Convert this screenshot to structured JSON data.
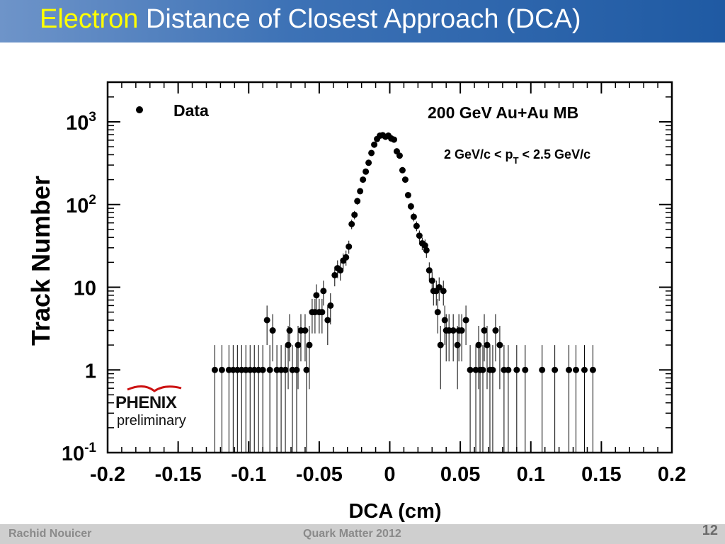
{
  "header": {
    "title_highlight": "Electron",
    "title_rest": "Distance of Closest Approach (DCA)",
    "highlight_color": "#ffff00"
  },
  "footer": {
    "author": "Rachid Nouicer",
    "conference": "Quark Matter 2012",
    "page_number": "12"
  },
  "logo": {
    "name": "PHENIX",
    "status": "preliminary"
  },
  "chart_data": {
    "type": "scatter",
    "xlabel": "DCA (cm)",
    "ylabel": "Track Number",
    "xlim": [
      -0.2,
      0.2
    ],
    "ylim": [
      0.1,
      2000
    ],
    "yscale": "log",
    "x_ticks": [
      "-0.2",
      "-0.15",
      "-0.1",
      "-0.05",
      "0",
      "0.05",
      "0.1",
      "0.15",
      "0.2"
    ],
    "y_ticks": [
      {
        "base": "10",
        "exp": "-1",
        "value": 0.1
      },
      {
        "base": "1",
        "exp": "",
        "value": 1
      },
      {
        "base": "10",
        "exp": "",
        "value": 10
      },
      {
        "base": "10",
        "exp": "2",
        "value": 100
      },
      {
        "base": "10",
        "exp": "3",
        "value": 1000
      }
    ],
    "legend": {
      "label": "Data",
      "position": "top-left"
    },
    "annotations": [
      "200 GeV  Au+Au MB",
      "2 GeV/c < p",
      "T",
      " < 2.5 GeV/c"
    ],
    "series": [
      {
        "name": "Data",
        "points": [
          [
            -0.124,
            1
          ],
          [
            -0.119,
            1
          ],
          [
            -0.114,
            1
          ],
          [
            -0.111,
            1
          ],
          [
            -0.108,
            1
          ],
          [
            -0.105,
            1
          ],
          [
            -0.102,
            1
          ],
          [
            -0.099,
            1
          ],
          [
            -0.096,
            1
          ],
          [
            -0.093,
            1
          ],
          [
            -0.09,
            1
          ],
          [
            -0.087,
            4
          ],
          [
            -0.085,
            1
          ],
          [
            -0.083,
            3
          ],
          [
            -0.08,
            1
          ],
          [
            -0.077,
            1
          ],
          [
            -0.074,
            1
          ],
          [
            -0.072,
            2
          ],
          [
            -0.071,
            3
          ],
          [
            -0.069,
            1
          ],
          [
            -0.066,
            1
          ],
          [
            -0.065,
            2
          ],
          [
            -0.063,
            3
          ],
          [
            -0.06,
            3
          ],
          [
            -0.059,
            1
          ],
          [
            -0.057,
            2
          ],
          [
            -0.055,
            5
          ],
          [
            -0.053,
            5
          ],
          [
            -0.052,
            8
          ],
          [
            -0.05,
            5
          ],
          [
            -0.048,
            5
          ],
          [
            -0.047,
            9
          ],
          [
            -0.044,
            4
          ],
          [
            -0.042,
            6
          ],
          [
            -0.039,
            14
          ],
          [
            -0.037,
            17
          ],
          [
            -0.035,
            16
          ],
          [
            -0.033,
            21
          ],
          [
            -0.031,
            23
          ],
          [
            -0.029,
            31
          ],
          [
            -0.027,
            58
          ],
          [
            -0.025,
            75
          ],
          [
            -0.023,
            110
          ],
          [
            -0.021,
            145
          ],
          [
            -0.019,
            200
          ],
          [
            -0.017,
            250
          ],
          [
            -0.015,
            320
          ],
          [
            -0.013,
            420
          ],
          [
            -0.011,
            530
          ],
          [
            -0.009,
            620
          ],
          [
            -0.007,
            680
          ],
          [
            -0.005,
            690
          ],
          [
            -0.003,
            660
          ],
          [
            -0.001,
            680
          ],
          [
            0.001,
            630
          ],
          [
            0.003,
            610
          ],
          [
            0.005,
            440
          ],
          [
            0.007,
            390
          ],
          [
            0.009,
            260
          ],
          [
            0.011,
            200
          ],
          [
            0.013,
            130
          ],
          [
            0.015,
            95
          ],
          [
            0.017,
            71
          ],
          [
            0.019,
            55
          ],
          [
            0.021,
            42
          ],
          [
            0.023,
            34
          ],
          [
            0.025,
            32
          ],
          [
            0.026,
            28
          ],
          [
            0.028,
            16
          ],
          [
            0.03,
            12
          ],
          [
            0.031,
            9
          ],
          [
            0.033,
            9
          ],
          [
            0.035,
            10
          ],
          [
            0.034,
            5
          ],
          [
            0.038,
            9
          ],
          [
            0.036,
            2
          ],
          [
            0.039,
            4
          ],
          [
            0.04,
            3
          ],
          [
            0.042,
            3
          ],
          [
            0.045,
            3
          ],
          [
            0.048,
            2
          ],
          [
            0.049,
            3
          ],
          [
            0.051,
            3
          ],
          [
            0.054,
            4
          ],
          [
            0.057,
            1
          ],
          [
            0.061,
            1
          ],
          [
            0.063,
            2
          ],
          [
            0.064,
            1
          ],
          [
            0.066,
            1
          ],
          [
            0.067,
            3
          ],
          [
            0.069,
            2
          ],
          [
            0.071,
            1
          ],
          [
            0.073,
            1
          ],
          [
            0.075,
            3
          ],
          [
            0.078,
            2
          ],
          [
            0.081,
            1
          ],
          [
            0.084,
            1
          ],
          [
            0.09,
            1
          ],
          [
            0.096,
            1
          ],
          [
            0.108,
            1
          ],
          [
            0.117,
            1
          ],
          [
            0.127,
            1
          ],
          [
            0.132,
            1
          ],
          [
            0.138,
            1
          ],
          [
            0.144,
            1
          ]
        ]
      }
    ]
  }
}
